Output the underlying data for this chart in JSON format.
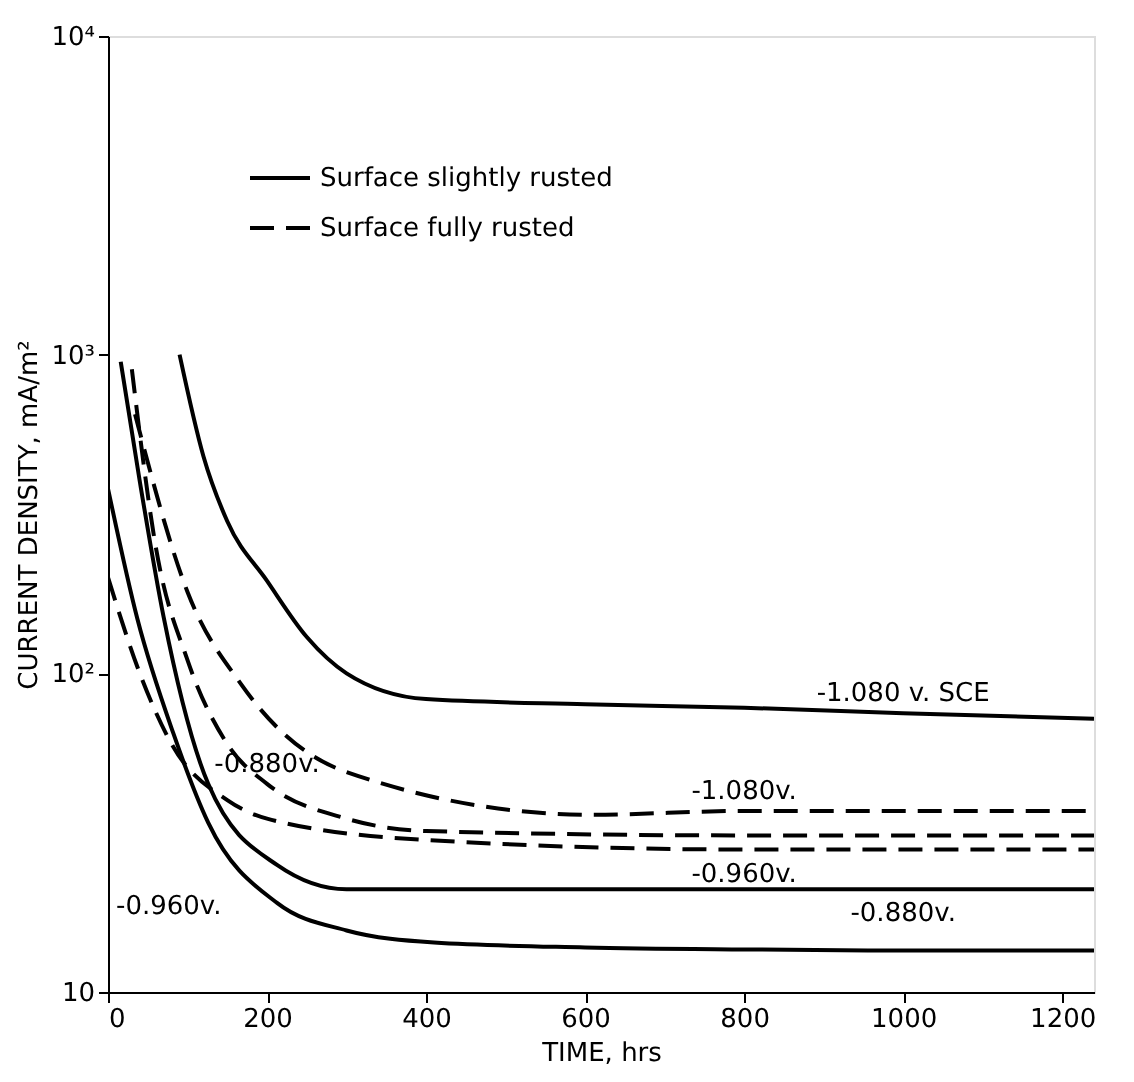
{
  "chart_data": {
    "type": "line",
    "xlabel": "TIME, hrs",
    "ylabel": "CURRENT DENSITY, mA/m²",
    "xlim": [
      0,
      1240
    ],
    "xticks": [
      0,
      200,
      400,
      600,
      800,
      1000,
      1200
    ],
    "ylim": [
      10,
      10000
    ],
    "yticks": [
      {
        "value": 10,
        "label": "10"
      },
      {
        "value": 100,
        "label": "10²"
      },
      {
        "value": 1000,
        "label": "10³"
      },
      {
        "value": 10000,
        "label": "10⁴"
      }
    ],
    "log": true,
    "grid": false,
    "legend": "top",
    "marker": "none",
    "series": [
      {
        "name": "Surface slightly rusted",
        "color": "#000000",
        "line_style": "solid",
        "x": [
          90,
          120,
          150,
          200,
          250,
          300,
          400,
          600,
          800,
          1000,
          1240
        ],
        "values": [
          1000,
          480,
          300,
          195,
          130,
          100,
          83,
          80,
          78,
          75,
          72
        ]
      },
      {
        "color": "#000000",
        "line_style": "solid",
        "x": [
          16,
          40,
          70,
          126,
          213,
          300,
          400,
          600,
          800,
          1000,
          1240
        ],
        "values": [
          950,
          400,
          150,
          45,
          25,
          21,
          21,
          21,
          21,
          21,
          21
        ]
      },
      {
        "color": "#000000",
        "line_style": "solid",
        "x": [
          0,
          37,
          82,
          126,
          213,
          300,
          410,
          600,
          800,
          1000,
          1240
        ],
        "values": [
          380,
          148,
          65,
          34,
          19,
          15.6,
          14.3,
          13.8,
          13.6,
          13.5,
          13.5
        ]
      },
      {
        "name": "Surface fully rusted",
        "color": "#000000",
        "line_style": "dashed",
        "x": [
          34,
          100,
          168,
          300,
          608,
          800,
          1000,
          1240
        ],
        "values": [
          650,
          180,
          92,
          49,
          36,
          37,
          37,
          37
        ]
      },
      {
        "color": "#000000",
        "line_style": "dashed",
        "x": [
          30,
          60,
          100,
          150,
          200,
          300,
          400,
          800,
          1240
        ],
        "values": [
          900,
          250,
          110,
          60,
          45,
          35,
          32,
          31,
          31
        ]
      },
      {
        "color": "#000000",
        "line_style": "dashed",
        "x": [
          0,
          40,
          80,
          150,
          200,
          400,
          800,
          1240
        ],
        "values": [
          200,
          100,
          60,
          40,
          35,
          30,
          28,
          28
        ]
      }
    ],
    "annotations": [
      {
        "text": "-1.080 v. SCE",
        "x": 1000,
        "y": 75
      },
      {
        "text": "-0.880v.",
        "x": 200,
        "y": 45
      },
      {
        "text": "-1.080v.",
        "x": 800,
        "y": 37
      },
      {
        "text": "-0.960v.",
        "x": 800,
        "y": 28
      },
      {
        "text": "-0.880v.",
        "x": 1000,
        "y": 21
      },
      "-0.960v."
    ]
  }
}
